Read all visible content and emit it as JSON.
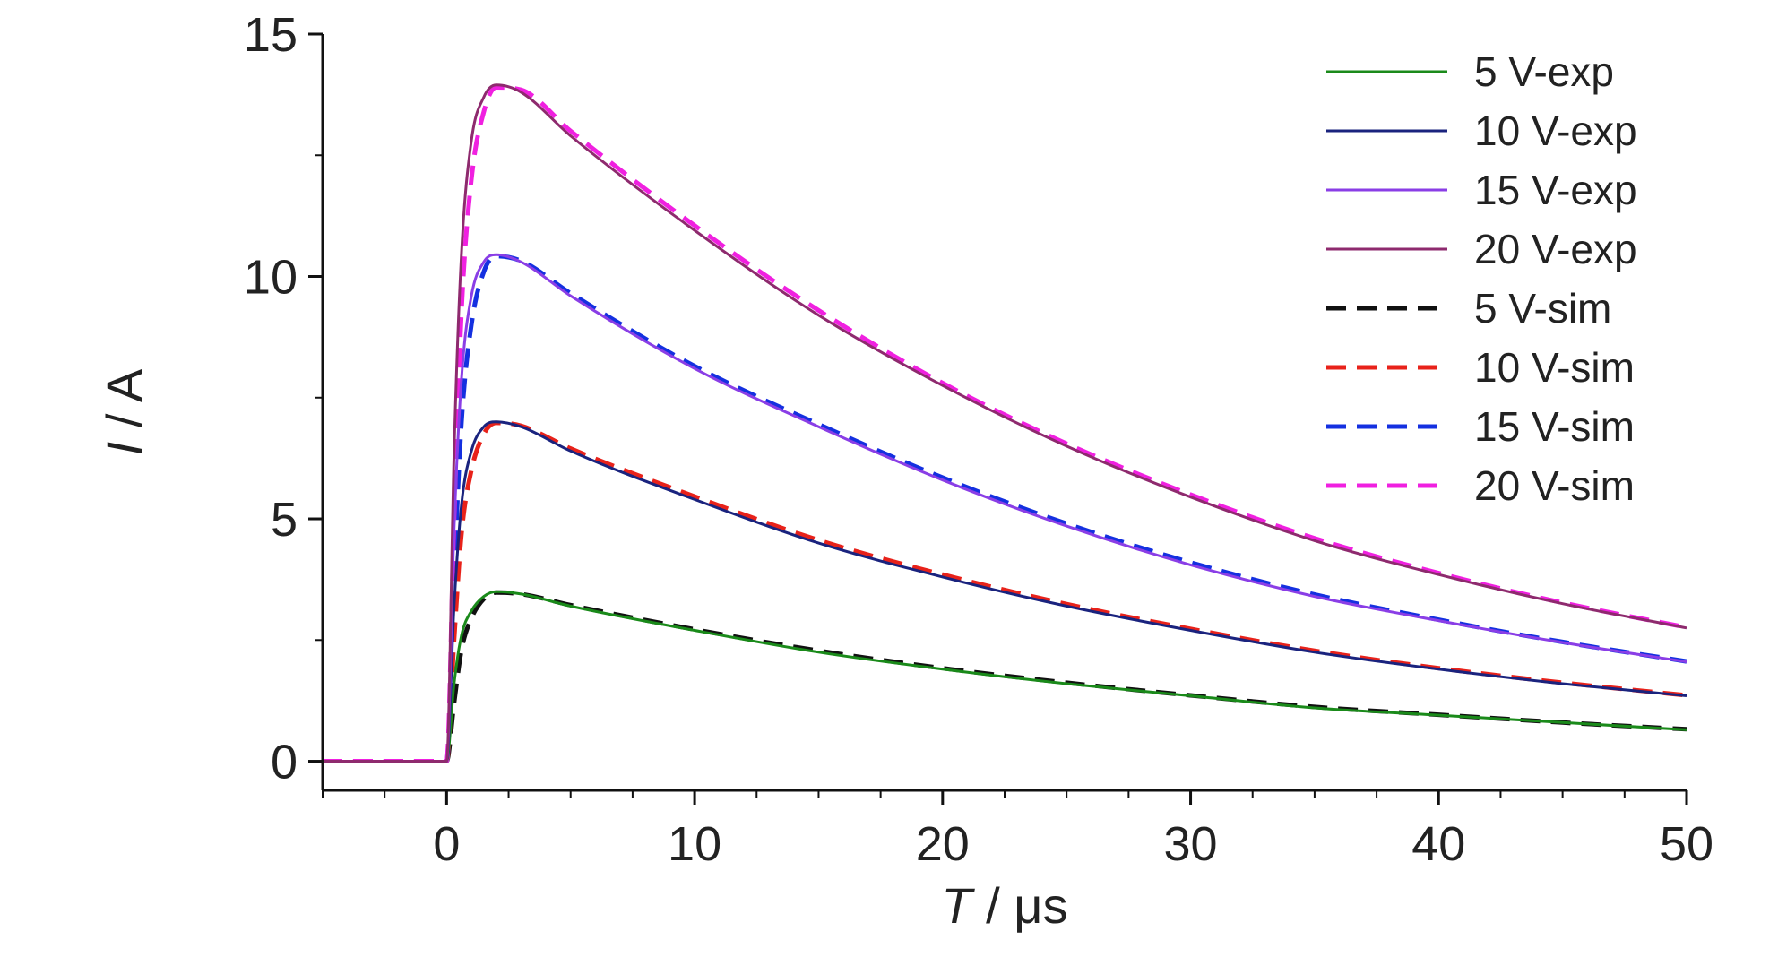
{
  "chart_data": {
    "type": "line",
    "title": "",
    "xlabel": {
      "var": "T",
      "unit": " / μs"
    },
    "ylabel": {
      "var": "I",
      "unit": " / A"
    },
    "xlim": [
      -5,
      50
    ],
    "ylim": [
      -0.6,
      15
    ],
    "xticks": [
      0,
      10,
      20,
      30,
      40,
      50
    ],
    "yticks": [
      0,
      5,
      10,
      15
    ],
    "xtick_labels": [
      "0",
      "10",
      "20",
      "30",
      "40",
      "50"
    ],
    "ytick_labels": [
      "0",
      "5",
      "10",
      "15"
    ],
    "grid": false,
    "legend_position": "top-right",
    "series": [
      {
        "name": "5 V-exp",
        "kind": "exp",
        "color": "#1a8a1a",
        "dash": "solid",
        "x": [
          -5,
          0,
          0.3,
          0.6,
          1,
          1.5,
          2,
          3,
          5,
          10,
          15,
          20,
          25,
          30,
          35,
          40,
          45,
          50
        ],
        "y": [
          0,
          0,
          1.6,
          2.6,
          3.1,
          3.4,
          3.5,
          3.45,
          3.2,
          2.7,
          2.25,
          1.9,
          1.6,
          1.35,
          1.1,
          0.95,
          0.8,
          0.65
        ]
      },
      {
        "name": "10 V-exp",
        "kind": "exp",
        "color": "#1a237e",
        "dash": "solid",
        "x": [
          -5,
          0,
          0.3,
          0.6,
          1,
          1.5,
          2,
          3,
          5,
          10,
          15,
          20,
          25,
          30,
          35,
          40,
          45,
          50
        ],
        "y": [
          0,
          0,
          3.2,
          5.3,
          6.4,
          6.9,
          7.0,
          6.9,
          6.4,
          5.4,
          4.5,
          3.8,
          3.2,
          2.7,
          2.25,
          1.9,
          1.6,
          1.35
        ]
      },
      {
        "name": "15 V-exp",
        "kind": "exp",
        "color": "#8a3ee6",
        "dash": "solid",
        "x": [
          -5,
          0,
          0.3,
          0.6,
          1,
          1.5,
          2,
          3,
          5,
          10,
          15,
          20,
          25,
          30,
          35,
          40,
          45,
          50
        ],
        "y": [
          0,
          0,
          4.8,
          7.9,
          9.6,
          10.3,
          10.45,
          10.3,
          9.6,
          8.1,
          6.9,
          5.8,
          4.85,
          4.05,
          3.4,
          2.9,
          2.45,
          2.05
        ]
      },
      {
        "name": "20 V-exp",
        "kind": "exp",
        "color": "#8e2a6e",
        "dash": "solid",
        "x": [
          -5,
          0,
          0.3,
          0.6,
          1,
          1.5,
          2,
          3,
          5,
          10,
          15,
          20,
          25,
          30,
          35,
          40,
          45,
          50
        ],
        "y": [
          0,
          0,
          6.4,
          10.5,
          12.8,
          13.7,
          13.95,
          13.8,
          12.9,
          10.95,
          9.2,
          7.75,
          6.5,
          5.45,
          4.55,
          3.85,
          3.25,
          2.75
        ]
      },
      {
        "name": "5 V-sim",
        "kind": "sim",
        "color": "#111111",
        "dash": "dashed",
        "x": [
          -5,
          0,
          0.3,
          0.6,
          1,
          1.5,
          2,
          3,
          5,
          10,
          15,
          20,
          25,
          30,
          35,
          40,
          45,
          50
        ],
        "y": [
          0,
          0,
          1.2,
          2.3,
          2.95,
          3.35,
          3.48,
          3.45,
          3.22,
          2.72,
          2.28,
          1.92,
          1.62,
          1.36,
          1.12,
          0.96,
          0.8,
          0.66
        ]
      },
      {
        "name": "10 V-sim",
        "kind": "sim",
        "color": "#e8221a",
        "dash": "dashed",
        "x": [
          -5,
          0,
          0.3,
          0.6,
          1,
          1.5,
          2,
          3,
          5,
          10,
          15,
          20,
          25,
          30,
          35,
          40,
          45,
          50
        ],
        "y": [
          0,
          0,
          2.5,
          4.7,
          6.0,
          6.75,
          6.98,
          6.92,
          6.45,
          5.46,
          4.56,
          3.85,
          3.24,
          2.73,
          2.28,
          1.92,
          1.62,
          1.36
        ]
      },
      {
        "name": "15 V-sim",
        "kind": "sim",
        "color": "#1430e0",
        "dash": "dashed",
        "x": [
          -5,
          0,
          0.3,
          0.6,
          1,
          1.5,
          2,
          3,
          5,
          10,
          15,
          20,
          25,
          30,
          35,
          40,
          45,
          50
        ],
        "y": [
          0,
          0,
          3.8,
          7.0,
          9.0,
          10.1,
          10.42,
          10.32,
          9.65,
          8.15,
          6.95,
          5.85,
          4.9,
          4.1,
          3.44,
          2.92,
          2.46,
          2.06
        ]
      },
      {
        "name": "20 V-sim",
        "kind": "sim",
        "color": "#f020e0",
        "dash": "dashed",
        "x": [
          -5,
          0,
          0.3,
          0.6,
          1,
          1.5,
          2,
          3,
          5,
          10,
          15,
          20,
          25,
          30,
          35,
          40,
          45,
          50
        ],
        "y": [
          0,
          0,
          5.0,
          9.3,
          12.0,
          13.4,
          13.9,
          13.85,
          13.0,
          11.05,
          9.3,
          7.8,
          6.55,
          5.5,
          4.6,
          3.88,
          3.27,
          2.76
        ]
      }
    ]
  }
}
